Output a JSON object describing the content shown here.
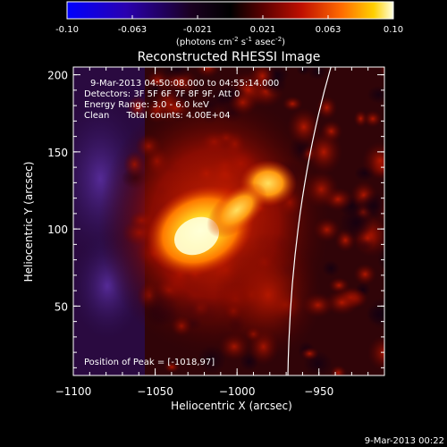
{
  "colorbar": {
    "ticks": [
      "-0.10",
      "-0.063",
      "-0.021",
      "0.021",
      "0.063",
      "0.10"
    ],
    "unit_pre": "(photons cm",
    "unit_exp1": "-2",
    "unit_mid": " s",
    "unit_exp2": "-1",
    "unit_mid2": " asec",
    "unit_exp3": "-2",
    "unit_post": ")"
  },
  "plot": {
    "title": "Reconstructed RHESSI Image",
    "xlabel": "Heliocentric X (arcsec)",
    "ylabel": "Heliocentric Y (arcsec)",
    "xlim": [
      -1100,
      -910
    ],
    "ylim": [
      5,
      205
    ],
    "xticks": [
      -1100,
      -1050,
      -1000,
      -950
    ],
    "xtick_labels": [
      "−1100",
      "−1050",
      "−1000",
      "−950"
    ],
    "yticks": [
      50,
      100,
      150,
      200
    ],
    "ytick_labels": [
      "50",
      "100",
      "150",
      "200"
    ]
  },
  "annotations": {
    "time_range": "9-Mar-2013 04:50:08.000 to 04:55:14.000",
    "detectors": "Detectors: 3F 5F 6F 7F 8F 9F, Att 0",
    "energy": "Energy Range: 3.0 - 6.0 keV",
    "clean": "Clean      Total counts: 4.00E+04",
    "peak": "Position of Peak = [-1018,97]"
  },
  "timestamp": "9-Mar-2013 00:22",
  "colors": {
    "background": "#000000",
    "text": "#ffffff",
    "limb": "#ffffff"
  }
}
